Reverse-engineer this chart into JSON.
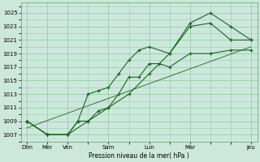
{
  "background_color": "#cce8dc",
  "grid_color": "#99ccaa",
  "line_color": "#1a6620",
  "xlabel": "Pression niveau de la mer( hPa )",
  "ylim": [
    1006,
    1026.5
  ],
  "yticks": [
    1007,
    1009,
    1011,
    1013,
    1015,
    1017,
    1019,
    1021,
    1023,
    1025
  ],
  "x_tick_labels_pos": [
    0,
    1,
    2,
    4,
    6,
    8,
    11
  ],
  "x_tick_labels": [
    "Dim",
    "Mer",
    "Ven",
    "Sam",
    "Lun",
    "Mar",
    "Jeu"
  ],
  "series1_x": [
    0,
    1,
    2,
    2.5,
    3.0,
    3.5,
    4.0,
    4.5,
    5.0,
    5.5,
    6.0,
    6.5,
    7.0,
    8.0,
    9.0,
    10.0,
    11.0
  ],
  "series1_y": [
    1009,
    1007,
    1007,
    1009,
    1009,
    1010.5,
    1011,
    1013,
    1015.5,
    1015.5,
    1017.5,
    1017.5,
    1017,
    1019,
    1019,
    1019.5,
    1019.5
  ],
  "series2_x": [
    0,
    1,
    2,
    2.5,
    3.0,
    3.5,
    4.0,
    4.5,
    5.0,
    5.5,
    6.0,
    7.0,
    8.0,
    9.0,
    10.0,
    11.0
  ],
  "series2_y": [
    1009,
    1007,
    1007,
    1009,
    1013,
    1013.5,
    1014,
    1016,
    1018,
    1019.5,
    1020,
    1019,
    1023,
    1023.5,
    1021,
    1021
  ],
  "series3_x": [
    0,
    1,
    2,
    3,
    4,
    5,
    6,
    7,
    8,
    9,
    10,
    11
  ],
  "series3_y": [
    1009,
    1007,
    1007,
    1009,
    1011,
    1013,
    1016,
    1019,
    1023.5,
    1025,
    1023,
    1021
  ],
  "series4_x": [
    0,
    11
  ],
  "series4_y": [
    1008,
    1020
  ]
}
